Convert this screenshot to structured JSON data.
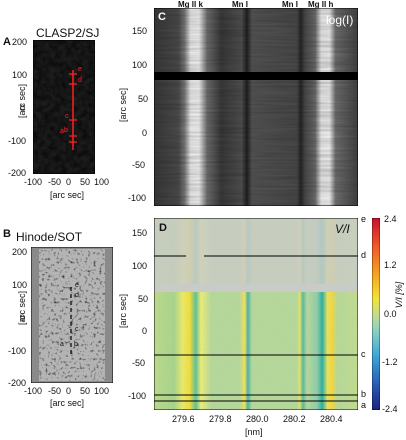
{
  "panel_A": {
    "letter": "A",
    "title": "CLASP2/SJ",
    "ylabel": "[arc sec]",
    "xlabel": "[arc sec]",
    "yticks": [
      "200",
      "100",
      "0",
      "-100",
      "-200"
    ],
    "xticks": [
      "-100",
      "-50",
      "0",
      "50",
      "100"
    ],
    "markers": [
      "e",
      "d",
      "c",
      "b",
      "a"
    ]
  },
  "panel_B": {
    "letter": "B",
    "title": "Hinode/SOT",
    "ylabel": "[arc sec]",
    "xlabel": "[arc sec]",
    "yticks": [
      "200",
      "100",
      "0",
      "-100",
      "-200"
    ],
    "xticks": [
      "-100",
      "-50",
      "0",
      "50",
      "100"
    ],
    "markers": [
      "e",
      "d",
      "c",
      "b",
      "a"
    ]
  },
  "panel_C": {
    "letter": "C",
    "title": "log(I)",
    "ylabel": "[arc sec]",
    "yticks": [
      "150",
      "100",
      "50",
      "0",
      "-50",
      "-100"
    ],
    "line_labels": [
      "Mg II k",
      "Mn I",
      "Mn I",
      "Mg II h"
    ]
  },
  "panel_D": {
    "letter": "D",
    "title": "V/I",
    "ylabel": "[arc sec]",
    "xlabel": "[nm]",
    "yticks": [
      "150",
      "100",
      "50",
      "0",
      "-50",
      "-100"
    ],
    "xticks": [
      "279.6",
      "279.8",
      "280.0",
      "280.2",
      "280.4"
    ],
    "row_markers": [
      "e",
      "d",
      "c",
      "b",
      "a"
    ]
  },
  "colorbar": {
    "label": "V/I [%]",
    "ticks": [
      "2.4",
      "1.2",
      "0.0",
      "-1.2",
      "-2.4"
    ]
  },
  "chart_data": [
    {
      "type": "heatmap",
      "title": "log(I)",
      "xlabel": "",
      "ylabel": "[arc sec]",
      "ylim": [
        -170,
        170
      ],
      "xlim": [
        279.4,
        280.55
      ],
      "line_positions_nm": {
        "Mg II k": 279.63,
        "Mn I a": 279.91,
        "Mn I b": 280.19,
        "Mg II h": 280.35
      }
    },
    {
      "type": "heatmap",
      "title": "V/I",
      "xlabel": "[nm]",
      "ylabel": "[arc sec]",
      "ylim": [
        -170,
        170
      ],
      "xlim": [
        279.4,
        280.55
      ],
      "color_range": [
        -2.4,
        2.4
      ],
      "row_markers_arcsec": {
        "e": 170,
        "d": 135,
        "c": -42,
        "b": -85,
        "a": -96
      }
    }
  ]
}
